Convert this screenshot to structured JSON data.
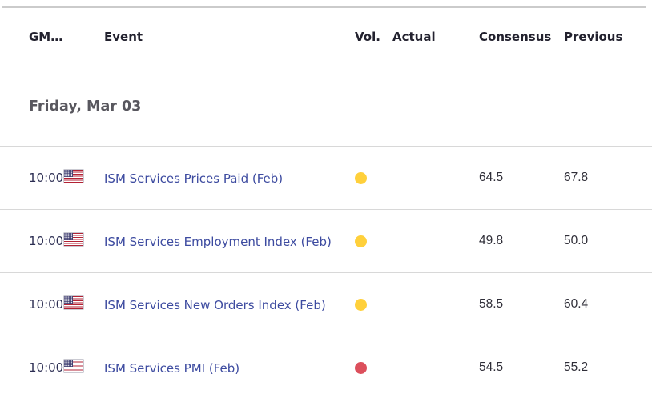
{
  "colors": {
    "vol_medium": "#FFD03B",
    "vol_high": "#DC4F5C",
    "event_link": "#3D4BA0",
    "time_text": "#2B2D52",
    "header_text": "#23222F",
    "date_text": "#58575E",
    "value_text": "#2F2E38",
    "divider": "#D8D8D8"
  },
  "table": {
    "columns": [
      {
        "key": "gmt",
        "label": "GM…"
      },
      {
        "key": "event",
        "label": "Event"
      },
      {
        "key": "vol",
        "label": "Vol."
      },
      {
        "key": "actual",
        "label": "Actual"
      },
      {
        "key": "consensus",
        "label": "Consensus"
      },
      {
        "key": "previous",
        "label": "Previous"
      }
    ],
    "date_header": "Friday, Mar 03",
    "rows": [
      {
        "time": "10:00",
        "country": "United States",
        "flag_icon": "us-flag-icon",
        "event": "ISM Services Prices Paid (Feb)",
        "volatility": "medium",
        "vol_color": "#FFD03B",
        "actual": "",
        "consensus": "64.5",
        "previous": "67.8"
      },
      {
        "time": "10:00",
        "country": "United States",
        "flag_icon": "us-flag-icon",
        "event": "ISM Services Employment Index (Feb)",
        "volatility": "medium",
        "vol_color": "#FFD03B",
        "actual": "",
        "consensus": "49.8",
        "previous": "50.0"
      },
      {
        "time": "10:00",
        "country": "United States",
        "flag_icon": "us-flag-icon",
        "event": "ISM Services New Orders Index (Feb)",
        "volatility": "medium",
        "vol_color": "#FFD03B",
        "actual": "",
        "consensus": "58.5",
        "previous": "60.4"
      },
      {
        "time": "10:00",
        "country": "United States",
        "flag_icon": "us-flag-icon",
        "event": "ISM Services PMI (Feb)",
        "volatility": "high",
        "vol_color": "#DC4F5C",
        "actual": "",
        "consensus": "54.5",
        "previous": "55.2"
      }
    ]
  }
}
